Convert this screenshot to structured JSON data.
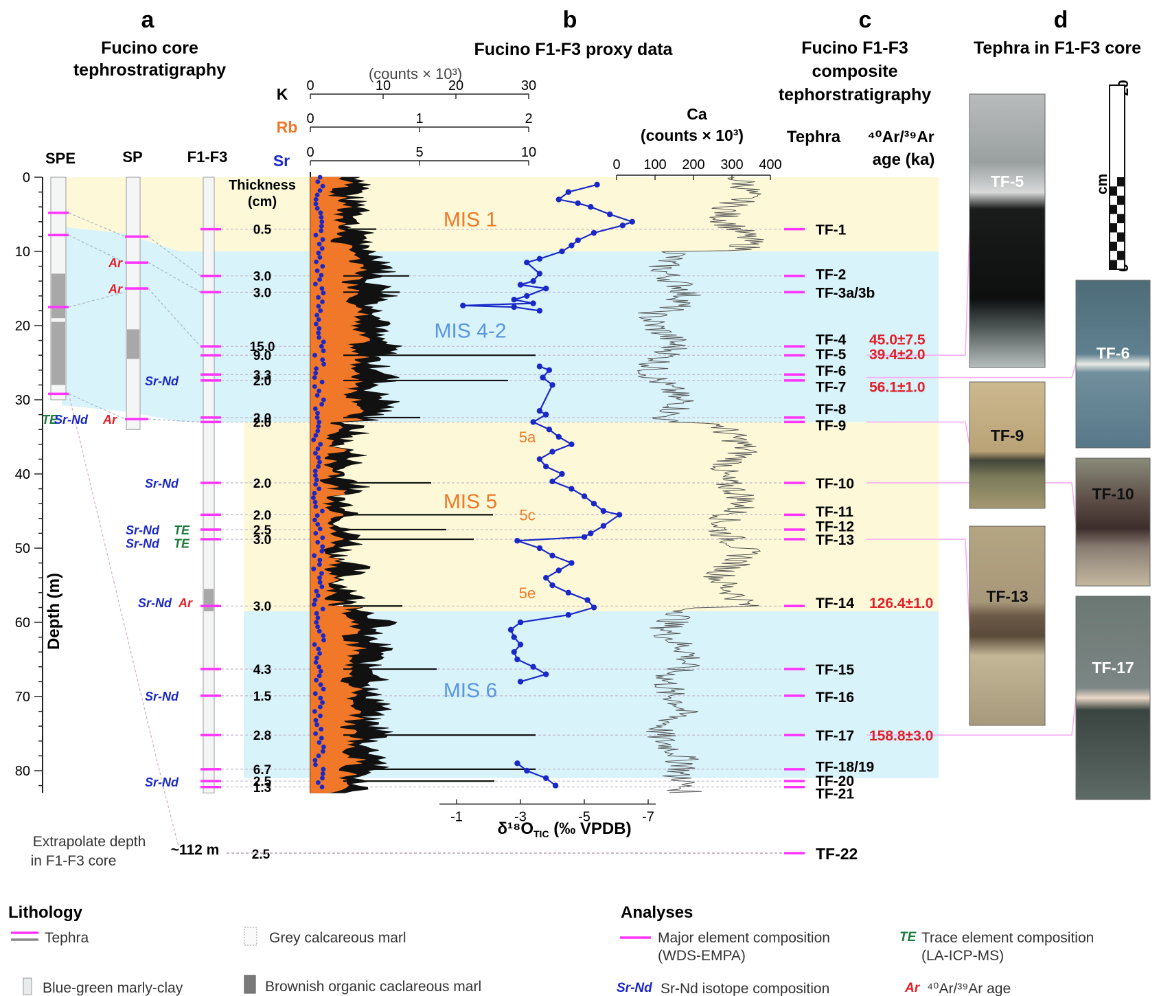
{
  "panels": {
    "a": {
      "letter": "a",
      "title1": "Fucino core",
      "title2": "tephrostratigraphy"
    },
    "b": {
      "letter": "b",
      "title": "Fucino F1-F3 proxy data"
    },
    "c": {
      "letter": "c",
      "title1": "Fucino F1-F3",
      "title2": "composite",
      "title3": "tephorstratigraphy"
    },
    "d": {
      "letter": "d",
      "title": "Tephra in F1-F3 core"
    }
  },
  "colors": {
    "tephra": "#ff33ff",
    "orange": "#f07828",
    "blue": "#1a28c8",
    "red": "#e0202a",
    "green": "#1a7a3a",
    "mis_warm": "#fdf9d8",
    "mis_cold": "#d9f3fb",
    "link": "#f7aef0"
  },
  "cores": {
    "spe": "SPE",
    "sp": "SP",
    "f1f3": "F1-F3"
  },
  "depth_axis": {
    "label": "Depth (m)",
    "ticks": [
      0,
      10,
      20,
      30,
      40,
      50,
      60,
      70,
      80
    ],
    "range": [
      0,
      83
    ]
  },
  "thickness_label1": "Thickness",
  "thickness_label2": "(cm)",
  "xrf_axes": {
    "units": "(counts × 10³)",
    "k": {
      "label": "K",
      "ticks": [
        "0",
        "10",
        "20",
        "30"
      ]
    },
    "rb": {
      "label": "Rb",
      "ticks": [
        "0",
        "1",
        "2"
      ]
    },
    "sr": {
      "label": "Sr",
      "ticks": [
        "0",
        "5",
        "10"
      ]
    }
  },
  "ca_axis": {
    "label1": "Ca",
    "label2": "(counts  × 10³)",
    "ticks": [
      "0",
      "100",
      "200",
      "300",
      "400"
    ]
  },
  "d18o_axis": {
    "ticks": [
      "-1",
      "-3",
      "-5",
      "-7"
    ],
    "label": "δ¹⁸O",
    "sub": "TIC",
    "label_rest": " (‰ VPDB)"
  },
  "mis_labels": [
    {
      "text": "MIS 1",
      "depth": 5.5,
      "cls": "warm"
    },
    {
      "text": "MIS 4-2",
      "depth": 20.5,
      "cls": "cold"
    },
    {
      "text": "MIS 5",
      "depth": 43.5,
      "cls": "warm"
    },
    {
      "text": "MIS 6",
      "depth": 69,
      "cls": "cold"
    }
  ],
  "substages": [
    {
      "text": "5a",
      "depth": 35
    },
    {
      "text": "5c",
      "depth": 45.5
    },
    {
      "text": "5e",
      "depth": 56
    }
  ],
  "mis_bands": [
    {
      "from": 0,
      "to": 10,
      "cls": "warm"
    },
    {
      "from": 10,
      "to": 33,
      "cls": "cold"
    },
    {
      "from": 33,
      "to": 58.5,
      "cls": "warm"
    },
    {
      "from": 58.5,
      "to": 81,
      "cls": "cold"
    }
  ],
  "tephra_col": {
    "header1": "Tephra",
    "header2": "⁴⁰Ar/³⁹Ar",
    "header3": "age (ka)"
  },
  "tephra": [
    {
      "name": "TF-1",
      "thick": "0.5",
      "depth": 7,
      "label_depth": 7
    },
    {
      "name": "TF-2",
      "thick": "3.0",
      "depth": 13.3,
      "label_depth": 13
    },
    {
      "name": "TF-3a/3b",
      "thick": "3.0",
      "depth": 15.5,
      "label_depth": 15.5
    },
    {
      "name": "TF-4",
      "thick": "15.0",
      "depth": 22.8,
      "label_depth": 21.8,
      "age": "45.0±7.5"
    },
    {
      "name": "TF-5",
      "thick": "9.0",
      "depth": 24,
      "label_depth": 23.8,
      "age": "39.4±2.0"
    },
    {
      "name": "TF-6",
      "thick": "3.3",
      "depth": 26.6,
      "label_depth": 26
    },
    {
      "name": "TF-7",
      "thick": "2.0",
      "depth": 27.4,
      "label_depth": 28.2,
      "age": "56.1±1.0"
    },
    {
      "name": "TF-8",
      "thick": "2.0",
      "depth": 32.4,
      "label_depth": 31.2
    },
    {
      "name": "TF-9",
      "thick": "2.0",
      "depth": 33,
      "label_depth": 33.4
    },
    {
      "name": "TF-10",
      "thick": "2.0",
      "depth": 41.2,
      "label_depth": 41.2
    },
    {
      "name": "TF-11",
      "thick": "2.0",
      "depth": 45.5,
      "label_depth": 45
    },
    {
      "name": "TF-12",
      "thick": "2.5",
      "depth": 47.5,
      "label_depth": 47
    },
    {
      "name": "TF-13",
      "thick": "3.0",
      "depth": 48.8,
      "label_depth": 48.8
    },
    {
      "name": "TF-14",
      "thick": "3.0",
      "depth": 57.8,
      "label_depth": 57.3,
      "age": "126.4±1.0"
    },
    {
      "name": "TF-15",
      "thick": "4.3",
      "depth": 66.3,
      "label_depth": 66.3
    },
    {
      "name": "TF-16",
      "thick": "1.5",
      "depth": 69.9,
      "label_depth": 70
    },
    {
      "name": "TF-17",
      "thick": "2.8",
      "depth": 75.2,
      "label_depth": 75.2,
      "age": "158.8±3.0"
    },
    {
      "name": "TF-18/19",
      "thick": "6.7",
      "depth": 79.8,
      "label_depth": 79.4
    },
    {
      "name": "TF-20",
      "thick": "2.5",
      "depth": 81.4,
      "label_depth": 81.3
    },
    {
      "name": "TF-21",
      "thick": "1.3",
      "depth": 82.2,
      "label_depth": 83
    }
  ],
  "tf22": {
    "name": "TF-22",
    "thick": "2.5",
    "depth_text": "~112 m"
  },
  "extrapolate1": "Extrapolate depth",
  "extrapolate2": "in F1-F3 core",
  "analysis_tags": [
    {
      "text": "Ar",
      "type": "ar",
      "depth": 11.5,
      "col": "spe"
    },
    {
      "text": "Ar",
      "type": "ar",
      "depth": 15,
      "col": "spe"
    },
    {
      "text": "TE",
      "type": "te",
      "depth": 32.6,
      "col": "far1"
    },
    {
      "text": "Sr-Nd",
      "type": "srnd",
      "depth": 32.6,
      "col": "far2"
    },
    {
      "text": "Ar",
      "type": "ar",
      "depth": 32.6,
      "col": "far3"
    },
    {
      "text": "Sr-Nd",
      "type": "srnd",
      "depth": 27.4,
      "col": "f1"
    },
    {
      "text": "Sr-Nd",
      "type": "srnd",
      "depth": 41.2,
      "col": "f1"
    },
    {
      "text": "Sr-Nd",
      "type": "srnd",
      "depth": 47.5,
      "col": "f2"
    },
    {
      "text": "TE",
      "type": "te",
      "depth": 47.5,
      "col": "f3"
    },
    {
      "text": "Sr-Nd",
      "type": "srnd",
      "depth": 49.3,
      "col": "f2"
    },
    {
      "text": "TE",
      "type": "te",
      "depth": 49.3,
      "col": "f3"
    },
    {
      "text": "Sr-Nd",
      "type": "srnd",
      "depth": 57.3,
      "col": "f4"
    },
    {
      "text": "Ar",
      "type": "ar",
      "depth": 57.3,
      "col": "f5"
    },
    {
      "text": "Sr-Nd",
      "type": "srnd",
      "depth": 69.9,
      "col": "f1"
    },
    {
      "text": "Sr-Nd",
      "type": "srnd",
      "depth": 81.5,
      "col": "f1"
    }
  ],
  "photos": [
    {
      "label": "TF-5",
      "style": "tf5"
    },
    {
      "label": "TF-9",
      "style": "tf9"
    },
    {
      "label": "TF-13",
      "style": "tf13"
    },
    {
      "label": "TF-6",
      "style": "tf6"
    },
    {
      "label": "TF-10",
      "style": "tf10"
    },
    {
      "label": "TF-17",
      "style": "tf17"
    }
  ],
  "scale_bar": {
    "top": "20",
    "bottom": "0",
    "unit": "cm"
  },
  "legend": {
    "lithology_title": "Lithology",
    "tephra": "Tephra",
    "grey_marl": "Grey calcareous marl",
    "blue_clay": "Blue-green marly-clay",
    "brown_marl": "Brownish organic caclareous marl",
    "analyses_title": "Analyses",
    "major1": "Major element composition",
    "major2": "(WDS-EMPA)",
    "te_tag": "TE",
    "te1": "Trace element composition",
    "te2": "(LA-ICP-MS)",
    "srnd_tag": "Sr-Nd",
    "srnd": "Sr-Nd isotope composition",
    "ar_tag": "Ar",
    "ar": "⁴⁰Ar/³⁹Ar age"
  },
  "d18o_data": {
    "depth": [
      1,
      2,
      3,
      3.5,
      4,
      5,
      6,
      6.5,
      7.5,
      8.5,
      9.2,
      10,
      11,
      11.5,
      13,
      14,
      14.5,
      15,
      16,
      16.5,
      17,
      17.3,
      17.5,
      18,
      25.5,
      26,
      27,
      28,
      31.5,
      32,
      33,
      34,
      35,
      36,
      37,
      38,
      39,
      40,
      41,
      42,
      43,
      44,
      45,
      45.5,
      47,
      48,
      48.5,
      49,
      50,
      51,
      52,
      53,
      54,
      55,
      56,
      57,
      58,
      59,
      60,
      61,
      62,
      63,
      64,
      65,
      66,
      67,
      68,
      79,
      80,
      81,
      82
    ],
    "value": [
      -5.4,
      -4.5,
      -4.2,
      -4.8,
      -5.2,
      -5.8,
      -6.5,
      -6.2,
      -5.3,
      -4.8,
      -4.6,
      -4.3,
      -3.6,
      -3.2,
      -3.6,
      -3.4,
      -3.0,
      -3.8,
      -3.2,
      -2.8,
      -3.4,
      -1.2,
      -2.8,
      -3.6,
      -3.6,
      -3.9,
      -3.7,
      -4.0,
      -3.6,
      -3.8,
      -3.4,
      -3.9,
      -4.2,
      -4.6,
      -4.0,
      -3.6,
      -3.8,
      -4.3,
      -4.0,
      -4.6,
      -5.0,
      -5.3,
      -5.6,
      -6.1,
      -5.6,
      -5.2,
      -5.0,
      -2.9,
      -3.6,
      -4.0,
      -4.6,
      -4.2,
      -3.8,
      -4.0,
      -4.5,
      -5.1,
      -5.3,
      -4.5,
      -3.0,
      -2.7,
      -2.8,
      -3.0,
      -2.8,
      -2.9,
      -3.4,
      -3.8,
      -3.0,
      -2.9,
      -3.2,
      -3.8,
      -4.1
    ]
  }
}
